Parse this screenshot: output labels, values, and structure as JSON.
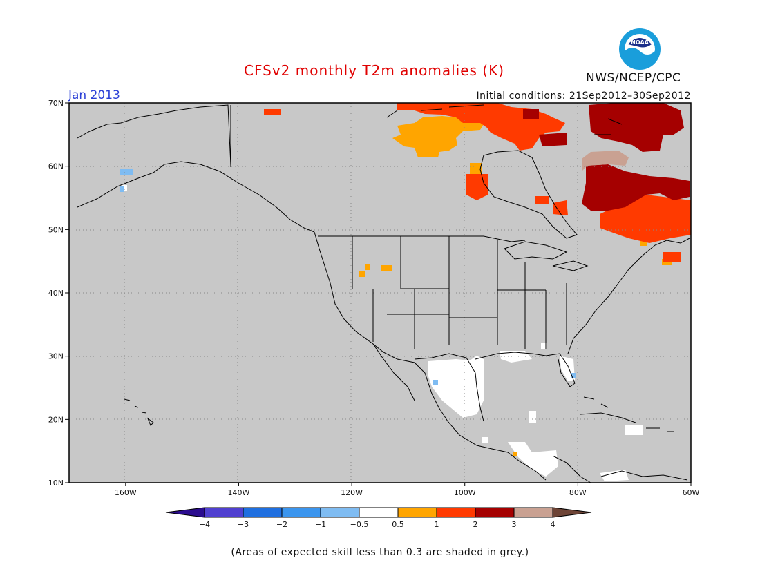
{
  "header": {
    "title": "CFSv2 monthly T2m anomalies (K)",
    "month": "Jan 2013",
    "initial_conditions": "Initial conditions: 21Sep2012–30Sep2012",
    "agency": "NWS/NCEP/CPC",
    "logo_text": "NOAA"
  },
  "map": {
    "lat_labels": [
      "70N",
      "60N",
      "50N",
      "40N",
      "30N",
      "20N",
      "10N"
    ],
    "lon_labels": [
      "160W",
      "140W",
      "120W",
      "100W",
      "80W",
      "60W"
    ],
    "lat_values": [
      70,
      60,
      50,
      40,
      30,
      20,
      10
    ],
    "lon_values": [
      -160,
      -140,
      -120,
      -100,
      -80,
      -60
    ],
    "background_color": "#c8c8c8",
    "grid_color": "#888888"
  },
  "colorbar": {
    "tick_labels": [
      "−4",
      "−3",
      "−2",
      "−1",
      "−0.5",
      "0.5",
      "1",
      "2",
      "3",
      "4"
    ],
    "colors": [
      "#2b0c8f",
      "#5040d0",
      "#1f6fe0",
      "#3b95ee",
      "#7fbcf2",
      "#ffffff",
      "#ffa500",
      "#ff3a00",
      "#a50000",
      "#c9a192",
      "#6e4436"
    ]
  },
  "note": "(Areas of expected skill less than 0.3 are shaded in grey.)"
}
